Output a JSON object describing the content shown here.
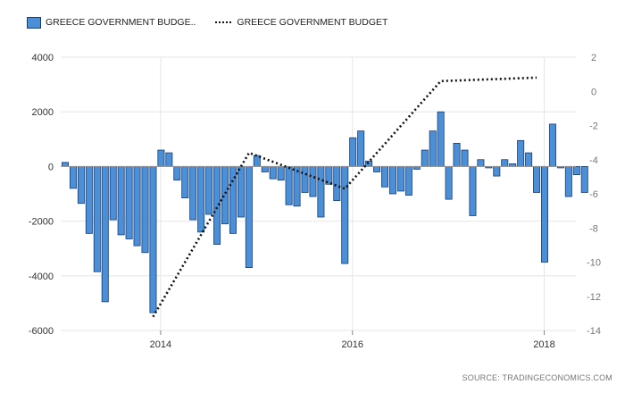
{
  "legend": {
    "bars_label": "GREECE GOVERNMENT BUDGE..",
    "line_label": "GREECE GOVERNMENT BUDGET"
  },
  "source": "SOURCE: TRADINGECONOMICS.COM",
  "colors": {
    "bar_fill": "#4a8fd8",
    "bar_stroke": "#1a3d6e",
    "line": "#111111",
    "grid": "#e6e6e6"
  },
  "chart_data": {
    "type": "bar",
    "title": "",
    "x_ticks": [
      "2014",
      "2016",
      "2018"
    ],
    "left_axis": {
      "ticks": [
        "4000",
        "2000",
        "0",
        "-2000",
        "-4000",
        "-6000"
      ],
      "ylim": [
        -6000,
        4000
      ]
    },
    "right_axis": {
      "ticks": [
        "2",
        "0",
        "-2",
        "-4",
        "-6",
        "-8",
        "-10",
        "-12",
        "-14"
      ],
      "ylim": [
        -14,
        2
      ]
    },
    "grid": true,
    "legend_position": "top-left",
    "series": [
      {
        "name": "GREECE GOVERNMENT BUDGE..",
        "type": "bar",
        "axis": "left",
        "x": [
          "2013-01",
          "2013-02",
          "2013-03",
          "2013-04",
          "2013-05",
          "2013-06",
          "2013-07",
          "2013-08",
          "2013-09",
          "2013-10",
          "2013-11",
          "2013-12",
          "2014-01",
          "2014-02",
          "2014-03",
          "2014-04",
          "2014-05",
          "2014-06",
          "2014-07",
          "2014-08",
          "2014-09",
          "2014-10",
          "2014-11",
          "2014-12",
          "2015-01",
          "2015-02",
          "2015-03",
          "2015-04",
          "2015-05",
          "2015-06",
          "2015-07",
          "2015-08",
          "2015-09",
          "2015-10",
          "2015-11",
          "2015-12",
          "2016-01",
          "2016-02",
          "2016-03",
          "2016-04",
          "2016-05",
          "2016-06",
          "2016-07",
          "2016-08",
          "2016-09",
          "2016-10",
          "2016-11",
          "2016-12",
          "2017-01",
          "2017-02",
          "2017-03",
          "2017-04",
          "2017-05",
          "2017-06",
          "2017-07",
          "2017-08",
          "2017-09",
          "2017-10",
          "2017-11",
          "2017-12",
          "2018-01",
          "2018-02",
          "2018-03",
          "2018-04",
          "2018-05",
          "2018-06"
        ],
        "values": [
          150,
          -800,
          -1350,
          -2450,
          -3850,
          -4950,
          -1950,
          -2500,
          -2650,
          -2900,
          -3150,
          -5350,
          600,
          500,
          -500,
          -1150,
          -1950,
          -2400,
          -1750,
          -2850,
          -2100,
          -2450,
          -1850,
          -3700,
          400,
          -200,
          -450,
          -500,
          -1400,
          -1450,
          -950,
          -1100,
          -1850,
          -650,
          -1250,
          -3550,
          1050,
          1300,
          200,
          -200,
          -750,
          -1000,
          -900,
          -1050,
          -100,
          600,
          1300,
          2000,
          -1200,
          850,
          600,
          -1800,
          250,
          -50,
          -350,
          250,
          100,
          950,
          500,
          -950,
          -3500,
          1550,
          -50,
          -1100,
          -300,
          -950
        ]
      },
      {
        "name": "GREECE GOVERNMENT BUDGET",
        "type": "line",
        "axis": "right",
        "x": [
          "2013-12",
          "2014-12",
          "2015-12",
          "2016-12",
          "2017-12"
        ],
        "values": [
          -13.2,
          -3.6,
          -5.7,
          0.6,
          0.8
        ]
      }
    ]
  }
}
